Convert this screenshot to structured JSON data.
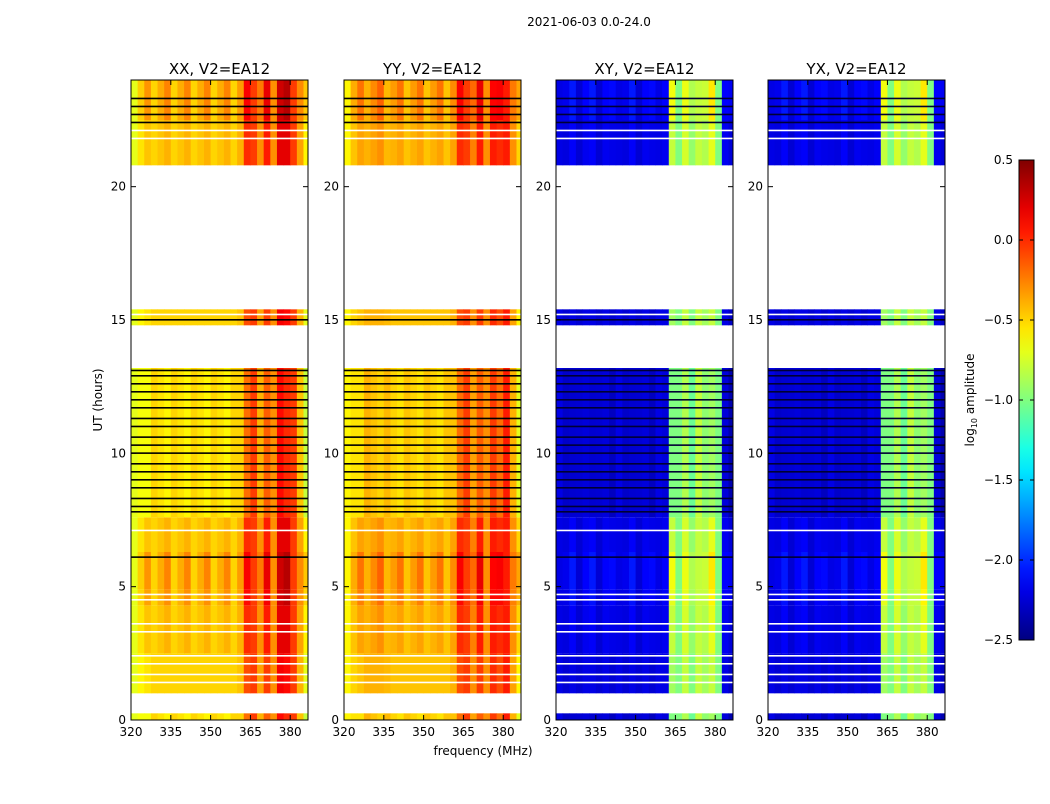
{
  "chart_data": {
    "type": "heatmap",
    "title": "2021-06-03 0.0-24.0",
    "xlabel": "frequency (MHz)",
    "ylabel": "UT (hours)",
    "xlim": [
      320,
      386.7
    ],
    "ylim": [
      0,
      24
    ],
    "xticks": [
      320,
      335,
      350,
      365,
      380
    ],
    "xtick_labels": [
      "320",
      "335",
      "350",
      "365",
      "380"
    ],
    "yticks": [
      0,
      5,
      10,
      15,
      20
    ],
    "ytick_labels": [
      "0",
      "5",
      "10",
      "15",
      "20"
    ],
    "freq_bin_edges_start": 320,
    "freq_bin_width_mhz": 2.5,
    "time_segments_hours": [
      {
        "start": 0.0,
        "end": 0.25,
        "offset": -0.05
      },
      {
        "start": 1.0,
        "end": 2.5,
        "offset": 0.0
      },
      {
        "start": 2.5,
        "end": 4.3,
        "offset": 0.05
      },
      {
        "start": 4.3,
        "end": 4.9,
        "offset": 0.1
      },
      {
        "start": 4.9,
        "end": 6.3,
        "offset": 0.12
      },
      {
        "start": 6.3,
        "end": 7.6,
        "offset": 0.05
      },
      {
        "start": 7.6,
        "end": 13.2,
        "offset": -0.05
      },
      {
        "start": 14.8,
        "end": 15.4,
        "offset": 0.0
      },
      {
        "start": 20.8,
        "end": 22.5,
        "offset": 0.05
      },
      {
        "start": 22.5,
        "end": 24.0,
        "offset": 0.12
      }
    ],
    "flagged_rows_black_hours": [
      7.8,
      8.0,
      8.3,
      8.7,
      9.0,
      9.3,
      9.6,
      10.0,
      10.3,
      10.6,
      11.0,
      11.3,
      11.7,
      12.0,
      12.3,
      12.6,
      12.9,
      13.1,
      6.1,
      15.0,
      22.4,
      22.7,
      23.0,
      23.3
    ],
    "flagged_rows_white_hours": [
      1.4,
      1.7,
      2.1,
      2.4,
      3.3,
      3.6,
      4.5,
      4.7,
      7.1,
      15.2,
      21.8,
      22.1
    ],
    "panels": [
      {
        "title": "XX, V2=EA12",
        "log10_amplitude_by_freq_bin": [
          -0.7,
          -0.6,
          -0.55,
          -0.5,
          -0.5,
          -0.5,
          -0.5,
          -0.5,
          -0.5,
          -0.5,
          -0.5,
          -0.5,
          -0.5,
          -0.5,
          -0.5,
          -0.5,
          -0.45,
          -0.1,
          -0.05,
          -0.35,
          -0.05,
          -0.3,
          0.15,
          0.1,
          -0.05,
          -0.4,
          -0.7
        ]
      },
      {
        "title": "YY, V2=EA12",
        "log10_amplitude_by_freq_bin": [
          -0.6,
          -0.5,
          -0.45,
          -0.4,
          -0.4,
          -0.4,
          -0.42,
          -0.45,
          -0.45,
          -0.45,
          -0.45,
          -0.45,
          -0.45,
          -0.45,
          -0.45,
          -0.45,
          -0.4,
          -0.1,
          -0.05,
          -0.3,
          -0.05,
          -0.3,
          0.0,
          -0.1,
          0.05,
          -0.35,
          -0.6
        ]
      },
      {
        "title": "XY, V2=EA12",
        "log10_amplitude_by_freq_bin": [
          -2.2,
          -2.25,
          -2.2,
          -2.25,
          -2.2,
          -2.2,
          -2.25,
          -2.2,
          -2.25,
          -2.2,
          -2.25,
          -2.2,
          -2.25,
          -2.2,
          -2.25,
          -2.2,
          -2.2,
          -0.9,
          -1.0,
          -0.8,
          -1.0,
          -0.8,
          -0.9,
          -0.8,
          -1.0,
          -2.2,
          -2.3
        ]
      },
      {
        "title": "YX, V2=EA12",
        "log10_amplitude_by_freq_bin": [
          -2.2,
          -2.25,
          -2.2,
          -2.25,
          -2.2,
          -2.2,
          -2.25,
          -2.2,
          -2.25,
          -2.2,
          -2.25,
          -2.2,
          -2.25,
          -2.2,
          -2.25,
          -2.2,
          -2.2,
          -0.9,
          -1.0,
          -0.8,
          -1.0,
          -0.8,
          -0.9,
          -0.8,
          -1.0,
          -2.2,
          -2.3
        ]
      }
    ],
    "colorbar": {
      "label": "log10 amplitude",
      "label_main": "log",
      "label_sub": "10",
      "label_rest": " amplitude",
      "range": [
        -2.5,
        0.5
      ],
      "colormap": "jet",
      "ticks": [
        -2.5,
        -2.0,
        -1.5,
        -1.0,
        -0.5,
        0.0,
        0.5
      ],
      "tick_labels": [
        "−2.5",
        "−2.0",
        "−1.5",
        "−1.0",
        "−0.5",
        "0.0",
        "0.5"
      ]
    }
  }
}
